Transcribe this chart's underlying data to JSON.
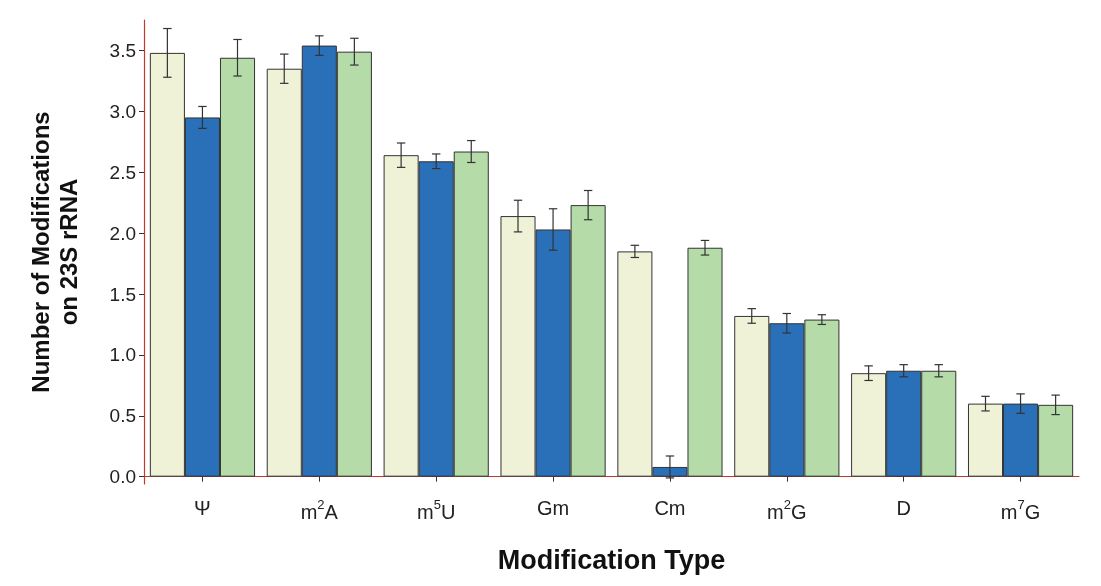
{
  "chart_data": {
    "type": "bar",
    "xlabel": "Modification Type",
    "ylabel": "Number of Modifications\non 23S rRNA",
    "categories": [
      "Ψ",
      "m$^{2}$A",
      "m$^{5}$U",
      "Gm",
      "Cm",
      "m$^{2}$G",
      "D",
      "m$^{7}$G"
    ],
    "series": [
      {
        "color": "#f0f2d8",
        "values": [
          3.48,
          3.35,
          2.64,
          2.14,
          1.85,
          1.32,
          0.85,
          0.6
        ],
        "errors": [
          0.2,
          0.12,
          0.1,
          0.13,
          0.05,
          0.06,
          0.06,
          0.06
        ]
      },
      {
        "color": "#2a70b8",
        "values": [
          2.95,
          3.54,
          2.59,
          2.03,
          0.08,
          1.26,
          0.87,
          0.6
        ],
        "errors": [
          0.09,
          0.08,
          0.06,
          0.17,
          0.09,
          0.08,
          0.05,
          0.08
        ]
      },
      {
        "color": "#b5dba8",
        "values": [
          3.44,
          3.49,
          2.67,
          2.23,
          1.88,
          1.29,
          0.87,
          0.59
        ],
        "errors": [
          0.15,
          0.11,
          0.09,
          0.12,
          0.06,
          0.04,
          0.05,
          0.08
        ]
      }
    ],
    "ylim": [
      -0.06,
      3.75
    ],
    "yticks": [
      {
        "value": 0,
        "label": "0.0"
      },
      {
        "value": 0.5,
        "label": "0.5"
      },
      {
        "value": 1,
        "label": "1.0"
      },
      {
        "value": 1.5,
        "label": "1.5"
      },
      {
        "value": 2,
        "label": "2.0"
      },
      {
        "value": 2.5,
        "label": "2.5"
      },
      {
        "value": 3,
        "label": "3.0"
      },
      {
        "value": 3.5,
        "label": "3.5"
      }
    ],
    "grid": false
  }
}
